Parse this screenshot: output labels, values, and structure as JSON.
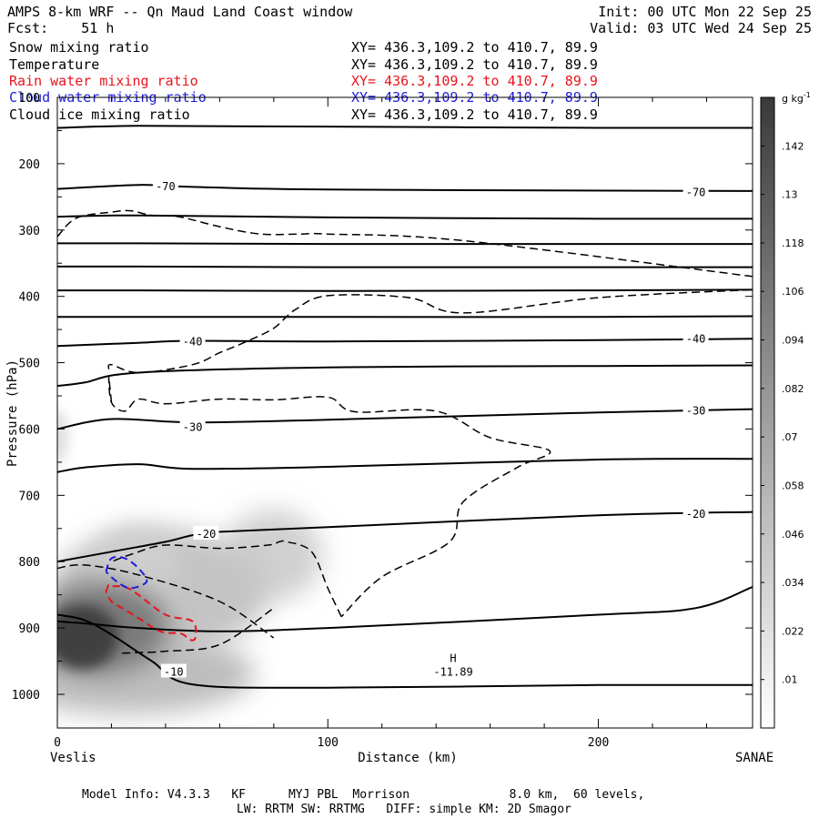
{
  "header": {
    "title": "AMPS 8-km WRF -- Qn Maud Land Coast window",
    "forecast": "Fcst:    51 h",
    "init": "Init: 00 UTC Mon 22 Sep 25",
    "valid": "Valid: 03 UTC Wed 24 Sep 25"
  },
  "legend": [
    {
      "name": "Snow mixing ratio",
      "xy": "XY= 436.3,109.2 to 410.7, 89.9",
      "color": "#000000"
    },
    {
      "name": "Temperature",
      "xy": "XY= 436.3,109.2 to 410.7, 89.9",
      "color": "#000000"
    },
    {
      "name": "Rain water mixing ratio",
      "xy": "XY= 436.3,109.2 to 410.7, 89.9",
      "color": "#e8141c"
    },
    {
      "name": "Cloud water mixing ratio",
      "xy": "XY= 436.3,109.2 to 410.7, 89.9",
      "color": "#1c1cd8"
    },
    {
      "name": "Cloud ice mixing ratio",
      "xy": "XY= 436.3,109.2 to 410.7, 89.9",
      "color": "#000000"
    }
  ],
  "footer": {
    "line1": "Model Info: V4.3.3   KF      MYJ PBL  Morrison              8.0 km,  60 levels,",
    "line2": "LW: RRTM SW: RRTMG   DIFF: simple KM: 2D Smagor"
  },
  "chart_data": {
    "type": "contour",
    "title": "AMPS 8-km WRF -- Qn Maud Land Coast window",
    "xlabel": "Distance (km)",
    "ylabel": "Pressure (hPa)",
    "xlim": [
      0,
      257
    ],
    "ylim": [
      1050,
      100
    ],
    "x_ticks": [
      0,
      100,
      200
    ],
    "y_ticks": [
      100,
      200,
      300,
      400,
      500,
      600,
      700,
      800,
      900,
      1000
    ],
    "start_label": "Veslis",
    "end_label": "SANAE",
    "colorbar": {
      "unit": "g kg",
      "unit_sup": "-1",
      "levels": [
        ".01",
        ".022",
        ".034",
        ".046",
        ".058",
        ".07",
        ".082",
        ".094",
        ".106",
        ".118",
        ".13",
        ".142"
      ]
    },
    "temperature_labels": [
      {
        "text": "-70",
        "x": 40,
        "p": 233
      },
      {
        "text": "-70",
        "x": 236,
        "p": 242
      },
      {
        "text": "-40",
        "x": 50,
        "p": 467
      },
      {
        "text": "-40",
        "x": 236,
        "p": 463
      },
      {
        "text": "-30",
        "x": 50,
        "p": 596
      },
      {
        "text": "-30",
        "x": 236,
        "p": 571
      },
      {
        "text": "-20",
        "x": 55,
        "p": 757
      },
      {
        "text": "-20",
        "x": 236,
        "p": 727
      },
      {
        "text": "-10",
        "x": 43,
        "p": 965
      }
    ],
    "temperature_lines": [
      {
        "x": [
          0,
          30,
          100,
          200,
          257
        ],
        "p": [
          146,
          143,
          144,
          146,
          146
        ]
      },
      {
        "x": [
          0,
          30,
          50,
          100,
          236,
          257
        ],
        "p": [
          238,
          232,
          235,
          239,
          241,
          241
        ]
      },
      {
        "x": [
          0,
          30,
          100,
          200,
          257
        ],
        "p": [
          280,
          278,
          281,
          283,
          283
        ]
      },
      {
        "x": [
          0,
          30,
          100,
          200,
          257
        ],
        "p": [
          320,
          320,
          321,
          321,
          321
        ]
      },
      {
        "x": [
          0,
          30,
          100,
          200,
          257
        ],
        "p": [
          355,
          355,
          356,
          356,
          356
        ]
      },
      {
        "x": [
          0,
          30,
          100,
          200,
          257
        ],
        "p": [
          391,
          391,
          392,
          391,
          390
        ]
      },
      {
        "x": [
          0,
          30,
          100,
          200,
          257
        ],
        "p": [
          431,
          431,
          431,
          431,
          430
        ]
      },
      {
        "x": [
          0,
          30,
          50,
          100,
          200,
          257
        ],
        "p": [
          475,
          470,
          467,
          468,
          466,
          464
        ]
      },
      {
        "x": [
          0,
          10,
          30,
          100,
          200,
          257
        ],
        "p": [
          535,
          530,
          515,
          507,
          505,
          504
        ]
      },
      {
        "x": [
          0,
          20,
          50,
          100,
          200,
          257
        ],
        "p": [
          600,
          585,
          590,
          586,
          575,
          570
        ]
      },
      {
        "x": [
          0,
          10,
          30,
          50,
          100,
          200,
          257
        ],
        "p": [
          665,
          658,
          653,
          660,
          657,
          646,
          645
        ]
      },
      {
        "x": [
          0,
          20,
          40,
          50,
          60,
          100,
          200,
          257
        ],
        "p": [
          800,
          785,
          770,
          760,
          755,
          748,
          730,
          725
        ]
      },
      {
        "x": [
          0,
          10,
          30,
          60,
          100,
          200,
          236,
          257
        ],
        "p": [
          890,
          893,
          900,
          905,
          900,
          880,
          870,
          838
        ]
      },
      {
        "x": [
          0,
          10,
          20,
          35,
          50,
          100,
          200,
          257
        ],
        "p": [
          880,
          888,
          910,
          950,
          985,
          990,
          986,
          986
        ]
      }
    ],
    "snow_contours": [
      {
        "x": [
          0,
          7,
          20,
          27,
          35,
          45,
          60,
          75,
          90,
          100,
          150,
          257
        ],
        "p": [
          310,
          282,
          273,
          271,
          278,
          280,
          295,
          306,
          306,
          306,
          316,
          370
        ]
      },
      {
        "x": [
          19,
          20,
          30,
          50,
          60,
          70,
          80,
          88,
          100,
          130,
          150,
          200,
          257
        ],
        "p": [
          510,
          503,
          515,
          503,
          485,
          468,
          448,
          420,
          399,
          402,
          425,
          402,
          390
        ]
      },
      {
        "x": [
          20,
          19,
          20,
          25,
          30,
          40,
          60,
          80,
          100,
          110,
          140,
          160,
          182,
          170,
          150,
          145,
          120,
          105
        ],
        "p": [
          560,
          520,
          560,
          573,
          555,
          562,
          555,
          556,
          552,
          574,
          573,
          613,
          633,
          658,
          710,
          770,
          823,
          883
        ]
      },
      {
        "x": [
          105,
          100,
          94,
          85,
          82,
          78,
          60,
          40,
          28,
          20
        ],
        "p": [
          883,
          840,
          785,
          770,
          770,
          775,
          780,
          775,
          788,
          800
        ]
      },
      {
        "x": [
          0,
          10,
          30,
          60,
          80
        ],
        "p": [
          810,
          805,
          820,
          860,
          915
        ]
      },
      {
        "x": [
          24,
          30,
          40,
          60,
          80
        ],
        "p": [
          938,
          937,
          935,
          925,
          870
        ]
      }
    ],
    "rain_contours": [
      {
        "x": [
          18,
          19,
          20,
          25,
          30,
          40,
          50,
          51,
          49,
          47,
          45,
          38,
          30,
          24,
          20,
          18
        ],
        "p": [
          845,
          835,
          837,
          838,
          850,
          880,
          890,
          915,
          918,
          911,
          908,
          905,
          885,
          870,
          860,
          845
        ]
      }
    ],
    "cloud_water_contours": [
      {
        "x": [
          18,
          20,
          25,
          30,
          33,
          27,
          22,
          18
        ],
        "p": [
          815,
          795,
          795,
          810,
          830,
          840,
          830,
          815
        ]
      }
    ],
    "max_marker": {
      "text": "H",
      "value": "-11.89",
      "x": 145,
      "p": 965
    }
  }
}
